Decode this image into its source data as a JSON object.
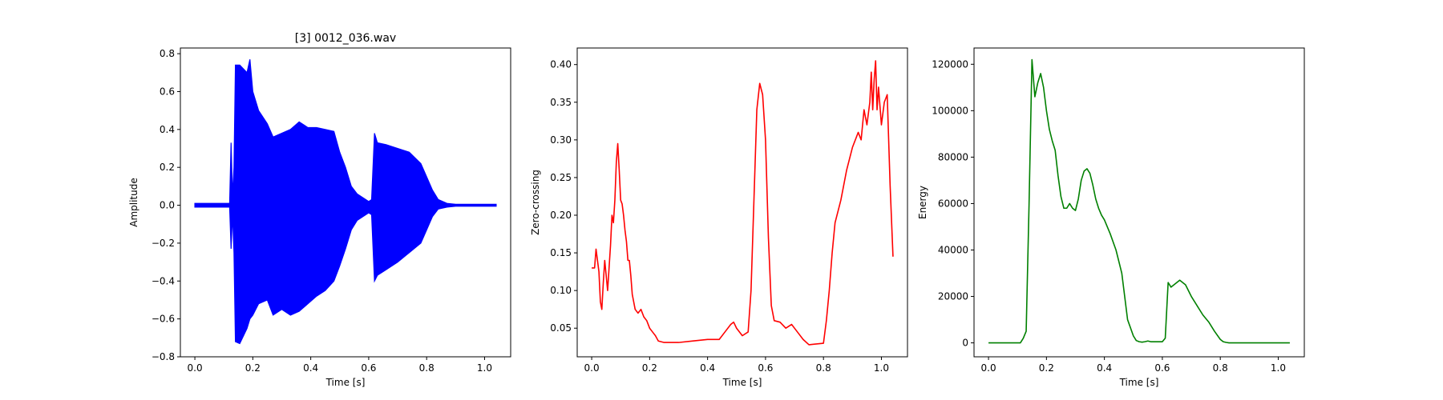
{
  "chart_data": [
    {
      "type": "line",
      "title": "[3] 0012_036.wav",
      "xlabel": "Time [s]",
      "ylabel": "Amplitude",
      "xlim": [
        -0.05,
        1.09
      ],
      "ylim": [
        -0.8,
        0.83
      ],
      "xticks": [
        0.0,
        0.2,
        0.4,
        0.6,
        0.8,
        1.0
      ],
      "yticks": [
        -0.8,
        -0.6,
        -0.4,
        -0.2,
        0.0,
        0.2,
        0.4,
        0.6,
        0.8
      ],
      "xtick_labels": [
        "0.0",
        "0.2",
        "0.4",
        "0.6",
        "0.8",
        "1.0"
      ],
      "ytick_labels": [
        "−0.8",
        "−0.6",
        "−0.4",
        "−0.2",
        "0.0",
        "0.2",
        "0.4",
        "0.6",
        "0.8"
      ],
      "color": "#0000ff",
      "envelope": {
        "x": [
          0.0,
          0.12,
          0.125,
          0.13,
          0.135,
          0.14,
          0.155,
          0.18,
          0.19,
          0.2,
          0.22,
          0.25,
          0.27,
          0.3,
          0.33,
          0.36,
          0.39,
          0.42,
          0.45,
          0.48,
          0.5,
          0.52,
          0.54,
          0.56,
          0.58,
          0.6,
          0.61,
          0.62,
          0.63,
          0.66,
          0.7,
          0.74,
          0.78,
          0.8,
          0.82,
          0.84,
          0.87,
          0.9,
          1.04
        ],
        "upper": [
          0.01,
          0.01,
          0.33,
          0.05,
          0.2,
          0.74,
          0.74,
          0.7,
          0.77,
          0.6,
          0.5,
          0.43,
          0.36,
          0.38,
          0.4,
          0.44,
          0.41,
          0.41,
          0.4,
          0.39,
          0.28,
          0.2,
          0.1,
          0.06,
          0.04,
          0.02,
          0.03,
          0.38,
          0.33,
          0.32,
          0.3,
          0.28,
          0.22,
          0.15,
          0.08,
          0.03,
          0.01,
          0.005,
          0.005
        ],
        "lower": [
          -0.01,
          -0.01,
          -0.23,
          -0.05,
          -0.25,
          -0.72,
          -0.73,
          -0.65,
          -0.6,
          -0.58,
          -0.52,
          -0.5,
          -0.58,
          -0.55,
          -0.58,
          -0.56,
          -0.52,
          -0.48,
          -0.45,
          -0.4,
          -0.32,
          -0.23,
          -0.13,
          -0.08,
          -0.06,
          -0.04,
          -0.05,
          -0.4,
          -0.37,
          -0.34,
          -0.3,
          -0.25,
          -0.2,
          -0.13,
          -0.06,
          -0.02,
          -0.01,
          -0.005,
          -0.005
        ]
      }
    },
    {
      "type": "line",
      "title": "",
      "xlabel": "Time [s]",
      "ylabel": "Zero-crossing",
      "xlim": [
        -0.05,
        1.09
      ],
      "ylim": [
        0.012,
        0.422
      ],
      "xticks": [
        0.0,
        0.2,
        0.4,
        0.6,
        0.8,
        1.0
      ],
      "yticks": [
        0.05,
        0.1,
        0.15,
        0.2,
        0.25,
        0.3,
        0.35,
        0.4
      ],
      "xtick_labels": [
        "0.0",
        "0.2",
        "0.4",
        "0.6",
        "0.8",
        "1.0"
      ],
      "ytick_labels": [
        "0.05",
        "0.10",
        "0.15",
        "0.20",
        "0.25",
        "0.30",
        "0.35",
        "0.40"
      ],
      "color": "#ff0000",
      "x": [
        0.0,
        0.01,
        0.015,
        0.02,
        0.025,
        0.03,
        0.035,
        0.04,
        0.045,
        0.05,
        0.055,
        0.06,
        0.065,
        0.07,
        0.075,
        0.08,
        0.085,
        0.09,
        0.095,
        0.1,
        0.105,
        0.11,
        0.115,
        0.12,
        0.125,
        0.13,
        0.135,
        0.14,
        0.145,
        0.15,
        0.16,
        0.17,
        0.18,
        0.19,
        0.2,
        0.21,
        0.22,
        0.23,
        0.25,
        0.3,
        0.35,
        0.4,
        0.44,
        0.46,
        0.48,
        0.49,
        0.5,
        0.52,
        0.54,
        0.55,
        0.56,
        0.57,
        0.58,
        0.59,
        0.6,
        0.61,
        0.62,
        0.63,
        0.65,
        0.67,
        0.69,
        0.71,
        0.73,
        0.75,
        0.8,
        0.81,
        0.82,
        0.83,
        0.84,
        0.86,
        0.88,
        0.9,
        0.92,
        0.93,
        0.94,
        0.95,
        0.96,
        0.965,
        0.97,
        0.975,
        0.98,
        0.985,
        0.99,
        1.0,
        1.01,
        1.02,
        1.03,
        1.04
      ],
      "y": [
        0.13,
        0.13,
        0.155,
        0.14,
        0.125,
        0.085,
        0.075,
        0.11,
        0.14,
        0.12,
        0.1,
        0.13,
        0.16,
        0.2,
        0.19,
        0.22,
        0.27,
        0.295,
        0.26,
        0.22,
        0.215,
        0.2,
        0.18,
        0.165,
        0.14,
        0.14,
        0.12,
        0.095,
        0.085,
        0.075,
        0.07,
        0.075,
        0.065,
        0.06,
        0.05,
        0.045,
        0.04,
        0.033,
        0.031,
        0.031,
        0.033,
        0.035,
        0.035,
        0.045,
        0.055,
        0.058,
        0.05,
        0.04,
        0.045,
        0.1,
        0.22,
        0.34,
        0.375,
        0.36,
        0.3,
        0.17,
        0.08,
        0.06,
        0.058,
        0.05,
        0.055,
        0.045,
        0.035,
        0.028,
        0.03,
        0.06,
        0.1,
        0.15,
        0.19,
        0.22,
        0.26,
        0.29,
        0.31,
        0.3,
        0.34,
        0.32,
        0.35,
        0.39,
        0.34,
        0.38,
        0.405,
        0.34,
        0.37,
        0.32,
        0.35,
        0.36,
        0.24,
        0.145
      ]
    },
    {
      "type": "line",
      "title": "",
      "xlabel": "Time [s]",
      "ylabel": "Energy",
      "xlim": [
        -0.05,
        1.09
      ],
      "ylim": [
        -6000,
        127000
      ],
      "xticks": [
        0.0,
        0.2,
        0.4,
        0.6,
        0.8,
        1.0
      ],
      "yticks": [
        0,
        20000,
        40000,
        60000,
        80000,
        100000,
        120000
      ],
      "xtick_labels": [
        "0.0",
        "0.2",
        "0.4",
        "0.6",
        "0.8",
        "1.0"
      ],
      "ytick_labels": [
        "0",
        "20000",
        "40000",
        "60000",
        "80000",
        "100000",
        "120000"
      ],
      "color": "#008000",
      "x": [
        0.0,
        0.1,
        0.11,
        0.12,
        0.13,
        0.14,
        0.15,
        0.16,
        0.17,
        0.18,
        0.19,
        0.2,
        0.21,
        0.22,
        0.23,
        0.24,
        0.25,
        0.26,
        0.27,
        0.28,
        0.29,
        0.3,
        0.31,
        0.32,
        0.33,
        0.34,
        0.35,
        0.36,
        0.37,
        0.38,
        0.39,
        0.4,
        0.42,
        0.44,
        0.46,
        0.48,
        0.5,
        0.51,
        0.52,
        0.53,
        0.54,
        0.55,
        0.56,
        0.58,
        0.6,
        0.61,
        0.62,
        0.63,
        0.64,
        0.66,
        0.68,
        0.7,
        0.72,
        0.74,
        0.76,
        0.78,
        0.8,
        0.81,
        0.82,
        0.83,
        0.85,
        0.9,
        1.0,
        1.04
      ],
      "y": [
        0,
        0,
        0,
        2000,
        5000,
        60000,
        122000,
        106000,
        112000,
        116000,
        110000,
        100000,
        92000,
        87000,
        83000,
        72000,
        63000,
        58000,
        58000,
        60000,
        58000,
        57000,
        62000,
        70000,
        74000,
        75000,
        73000,
        68000,
        62000,
        58000,
        55000,
        53000,
        47000,
        40000,
        30000,
        10000,
        3000,
        1000,
        500,
        300,
        500,
        800,
        500,
        500,
        500,
        2000,
        26000,
        24000,
        25000,
        27000,
        25000,
        20000,
        16000,
        12000,
        9000,
        5000,
        1500,
        500,
        200,
        0,
        0,
        0,
        0,
        0
      ]
    }
  ]
}
